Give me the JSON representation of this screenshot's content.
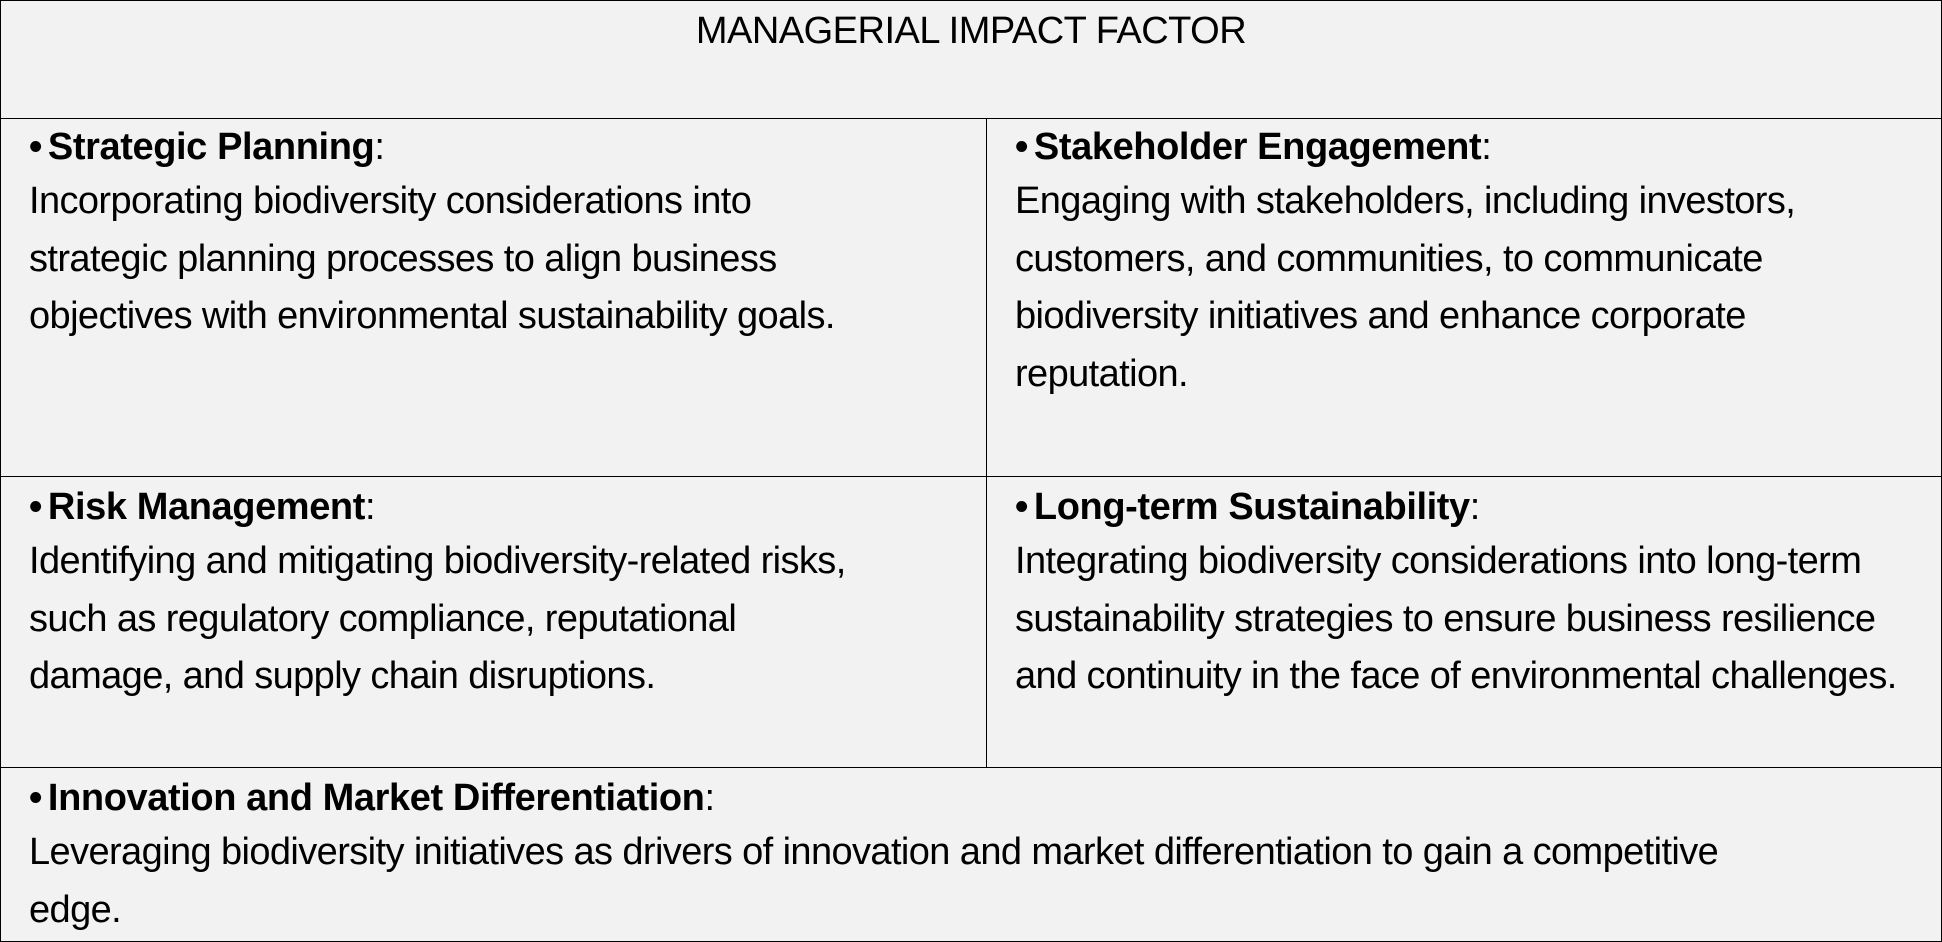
{
  "title": "MANAGERIAL IMPACT FACTOR",
  "bullet": "•",
  "factors": [
    {
      "name": "Strategic Planning",
      "suffix": ":",
      "description": "Incorporating biodiversity considerations into strategic planning processes to align business objectives with environmental sustainability goals."
    },
    {
      "name": "Stakeholder Engagement",
      "suffix": ":",
      "description": "Engaging with stakeholders, including investors, customers, and communities, to communicate biodiversity initiatives and enhance corporate reputation."
    },
    {
      "name": "Risk Management",
      "suffix": ":",
      "description": "Identifying and mitigating biodiversity-related risks, such as regulatory compliance, reputational damage, and supply chain disruptions."
    },
    {
      "name": "Long-term Sustainability",
      "suffix": ":",
      "description": "Integrating biodiversity considerations into long-term sustainability strategies to ensure business resilience and continuity in the face of environmental challenges."
    },
    {
      "name": "Innovation and Market Differentiation",
      "suffix": ":",
      "description": "Leveraging biodiversity initiatives as drivers of innovation and market differentiation to gain a competitive edge."
    }
  ]
}
